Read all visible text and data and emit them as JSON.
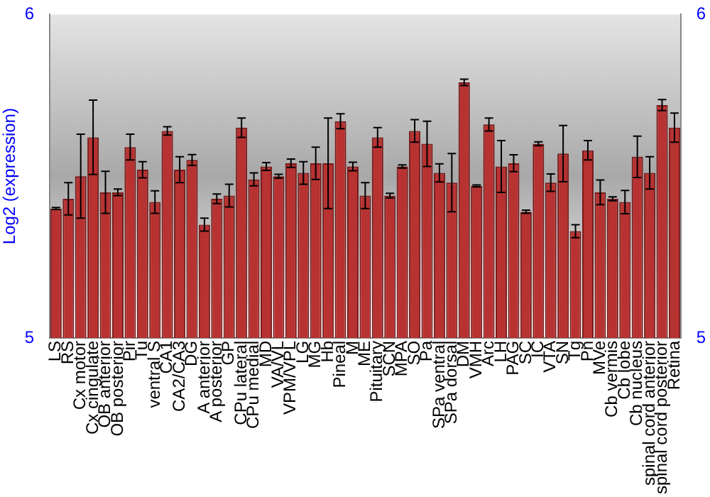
{
  "chart_data": {
    "type": "bar",
    "ylabel": "Log2 (expression)",
    "categories": [
      "LS",
      "RS",
      "Cx motor",
      "Cx cingulate",
      "OB anterior",
      "OB posterior",
      "Pir",
      "Tu",
      "ventral S",
      "CA1",
      "CA2/CA3",
      "DG",
      "A anterior",
      "A posterior",
      "GP",
      "CPu lateral",
      "CPu medial",
      "MD",
      "VA/VL",
      "VPM/VPL",
      "LG",
      "MG",
      "Hb",
      "Pineal",
      "M",
      "ME",
      "Pituitary",
      "SCN",
      "MPA",
      "SO",
      "Pa",
      "SPa ventral",
      "SPa dorsal",
      "DM",
      "VMH",
      "Arc",
      "LH",
      "PAG",
      "SC",
      "IC",
      "VTA",
      "SN",
      "Tg",
      "Pn",
      "MVe",
      "Cb vermis",
      "Cb lobe",
      "Cb nucleus",
      "spinal cord anterior",
      "spinal cord posterior",
      "Retina"
    ],
    "values": [
      5.4,
      5.43,
      5.5,
      5.62,
      5.45,
      5.45,
      5.59,
      5.52,
      5.42,
      5.64,
      5.52,
      5.55,
      5.35,
      5.43,
      5.44,
      5.65,
      5.49,
      5.53,
      5.5,
      5.54,
      5.51,
      5.54,
      5.54,
      5.67,
      5.53,
      5.44,
      5.62,
      5.44,
      5.53,
      5.64,
      5.6,
      5.51,
      5.48,
      5.79,
      5.47,
      5.66,
      5.53,
      5.54,
      5.39,
      5.6,
      5.48,
      5.57,
      5.33,
      5.58,
      5.45,
      5.43,
      5.42,
      5.56,
      5.51,
      5.72,
      5.65
    ],
    "errors": [
      0.003,
      0.05,
      0.13,
      0.115,
      0.065,
      0.01,
      0.04,
      0.025,
      0.035,
      0.013,
      0.04,
      0.017,
      0.02,
      0.015,
      0.035,
      0.03,
      0.02,
      0.012,
      0.006,
      0.013,
      0.035,
      0.05,
      0.14,
      0.023,
      0.013,
      0.04,
      0.03,
      0.007,
      0.005,
      0.035,
      0.07,
      0.028,
      0.09,
      0.01,
      0.003,
      0.02,
      0.08,
      0.026,
      0.005,
      0.006,
      0.027,
      0.087,
      0.02,
      0.03,
      0.038,
      0.006,
      0.036,
      0.064,
      0.05,
      0.017,
      0.045
    ],
    "color": "#b83232",
    "ylim": [
      5,
      6
    ],
    "yticks": [
      5,
      6
    ],
    "y2lim": [
      5,
      6
    ],
    "y2ticks": [
      5,
      6
    ],
    "grid": false,
    "legend": false
  }
}
